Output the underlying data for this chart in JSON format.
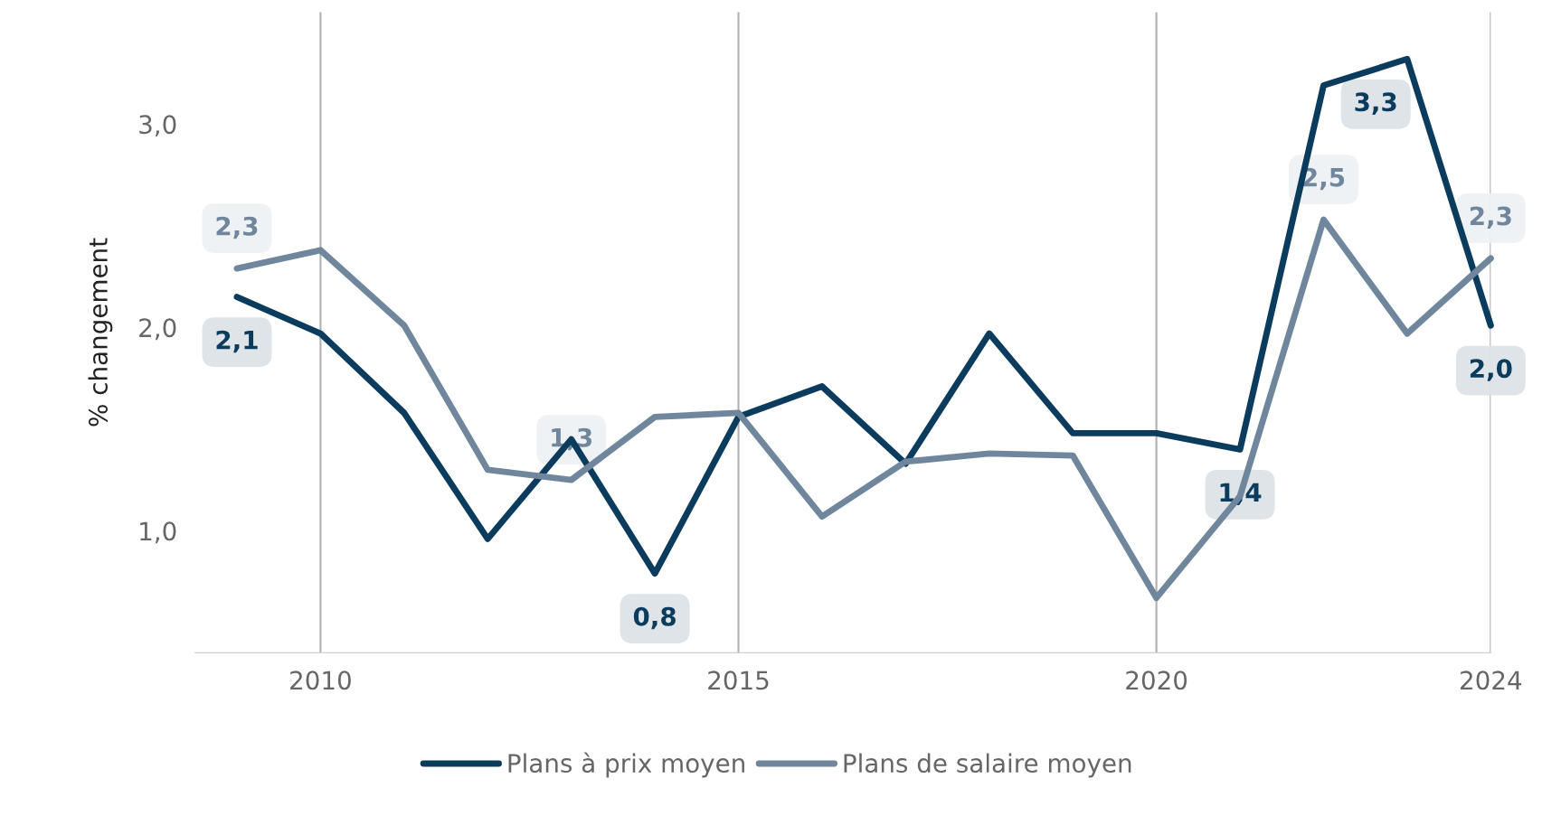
{
  "chart_data": {
    "type": "line",
    "ylabel": "% changement",
    "x": [
      2009,
      2010,
      2011,
      2012,
      2013,
      2014,
      2015,
      2016,
      2017,
      2018,
      2019,
      2020,
      2021,
      2022,
      2023,
      2024
    ],
    "series": [
      {
        "name": "Plans à prix moyen",
        "color": "#0b3c5d",
        "values": [
          2.15,
          1.97,
          1.58,
          0.96,
          1.45,
          0.79,
          1.56,
          1.71,
          1.33,
          1.97,
          1.48,
          1.48,
          1.4,
          3.19,
          3.32,
          2.01
        ],
        "value_labels": [
          "2,1",
          null,
          null,
          null,
          null,
          "0,8",
          null,
          null,
          null,
          null,
          null,
          null,
          "1,4",
          null,
          "3,3",
          "2,0"
        ]
      },
      {
        "name": "Plans de salaire moyen",
        "color": "#6f869c",
        "values": [
          2.29,
          2.38,
          2.01,
          1.3,
          1.25,
          1.56,
          1.58,
          1.07,
          1.34,
          1.38,
          1.37,
          0.67,
          1.17,
          2.53,
          1.97,
          2.34
        ],
        "value_labels": [
          "2,3",
          null,
          null,
          null,
          "1,3",
          null,
          null,
          null,
          null,
          null,
          null,
          null,
          null,
          "2,5",
          null,
          "2,3"
        ]
      }
    ],
    "xlim": [
      2008.5,
      2024
    ],
    "xticks": [
      2010,
      2015,
      2020,
      2024
    ],
    "ylim": [
      0.4,
      3.55
    ],
    "yticks": [
      {
        "value": 1,
        "label": "1,0"
      },
      {
        "value": 2,
        "label": "2,0"
      },
      {
        "value": 3,
        "label": "3,0"
      }
    ],
    "grid": "x",
    "legend": "bottom",
    "line_style": "solid",
    "marker": "none"
  }
}
